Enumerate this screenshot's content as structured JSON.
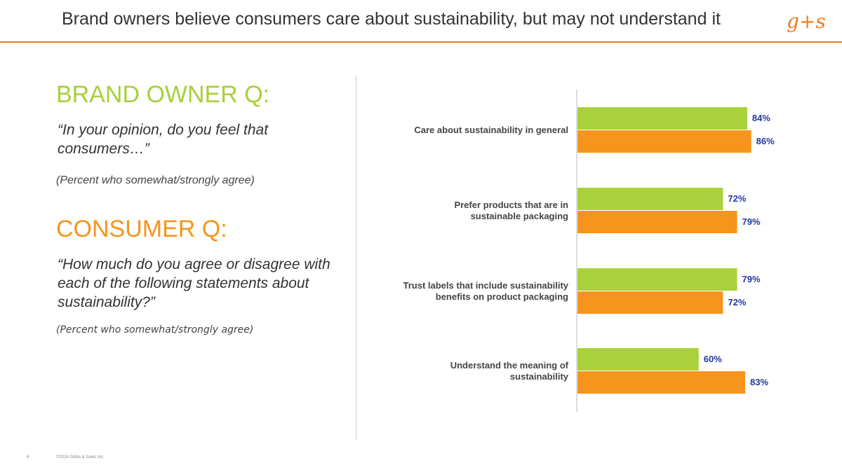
{
  "header": {
    "title": "Brand owners believe consumers care about sustainability, but may not understand it",
    "logo": "g+s"
  },
  "left": {
    "brand_heading": "BRAND OWNER Q:",
    "brand_quote": "“In your opinion, do you feel that consumers…”",
    "brand_note": "(Percent who somewhat/strongly agree)",
    "consumer_heading": "CONSUMER Q:",
    "consumer_quote": "“How much do you agree or disagree with each of the following statements about sustainability?”",
    "consumer_note": "(Percent who somewhat/strongly agree)"
  },
  "footer": {
    "page": "8",
    "copyright": "©2018 Gibbs & Soell, Inc."
  },
  "chart_data": {
    "type": "bar",
    "orientation": "horizontal",
    "categories": [
      [
        "Care about sustainability in general"
      ],
      [
        "Prefer products that are in",
        "sustainable packaging"
      ],
      [
        "Trust labels that include sustainability",
        "benefits on product packaging"
      ],
      [
        "Understand the meaning of",
        "sustainability"
      ]
    ],
    "series": [
      {
        "key": "brand",
        "values": [
          84,
          72,
          79,
          60
        ],
        "color": "#a9d13b"
      },
      {
        "key": "consumer",
        "values": [
          86,
          79,
          72,
          83
        ],
        "color": "#f7941d"
      }
    ],
    "value_suffix": "%",
    "label_color": "#1f3a9e",
    "xlim": [
      0,
      100
    ],
    "grid": false
  }
}
